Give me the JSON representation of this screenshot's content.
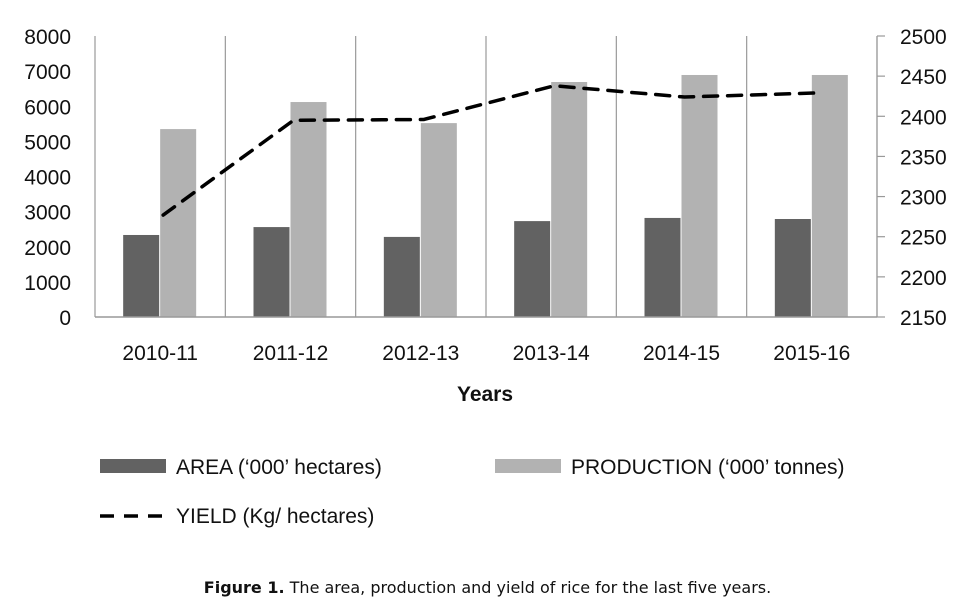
{
  "chart_data": {
    "type": "bar",
    "title": "",
    "xlabel": "Years",
    "ylabel": "",
    "y2label": "",
    "categories": [
      "2010-11",
      "2011-12",
      "2012-13",
      "2013-14",
      "2014-15",
      "2015-16"
    ],
    "ylim": [
      0,
      8000
    ],
    "yticks": [
      0,
      1000,
      2000,
      3000,
      4000,
      5000,
      6000,
      7000,
      8000
    ],
    "y2lim": [
      2150,
      2500
    ],
    "y2ticks": [
      2150,
      2200,
      2250,
      2300,
      2350,
      2400,
      2450,
      2500
    ],
    "grid": "vertical category separators",
    "legend_position": "bottom",
    "series": [
      {
        "name": "AREA (‘000’ hectares)",
        "type": "bar",
        "axis": "left",
        "color": "#626262",
        "values": [
          2335,
          2560,
          2280,
          2730,
          2820,
          2790
        ]
      },
      {
        "name": "PRODUCTION (‘000’ tonnes)",
        "type": "bar",
        "axis": "left",
        "color": "#b2b2b2",
        "values": [
          5350,
          6120,
          5520,
          6690,
          6890,
          6890
        ]
      },
      {
        "name": "YIELD (Kg/ hectares)",
        "type": "line",
        "style": "dashed",
        "axis": "right",
        "color": "#000000",
        "values": [
          2277,
          2395,
          2396,
          2438,
          2424,
          2429
        ]
      }
    ]
  },
  "caption": {
    "label": "Figure 1.",
    "text": " The area, production and yield of rice for the last five years."
  }
}
